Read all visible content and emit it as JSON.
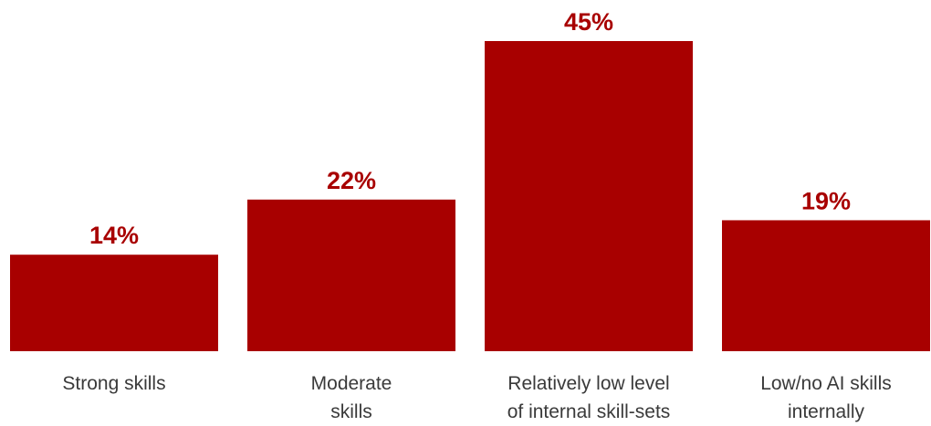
{
  "chart_data": {
    "type": "bar",
    "categories": [
      [
        "Strong skills"
      ],
      [
        "Moderate",
        "skills"
      ],
      [
        "Relatively low level",
        "of internal skill-sets"
      ],
      [
        "Low/no AI skills",
        "internally"
      ]
    ],
    "values": [
      14,
      22,
      45,
      19
    ],
    "value_labels": [
      "14%",
      "22%",
      "45%",
      "19%"
    ],
    "ylim": [
      0,
      45
    ],
    "grid": false,
    "legend": "none",
    "colors": {
      "bar": "#a80000",
      "value_text": "#a80000",
      "category_text": "#3a3a3a"
    }
  }
}
